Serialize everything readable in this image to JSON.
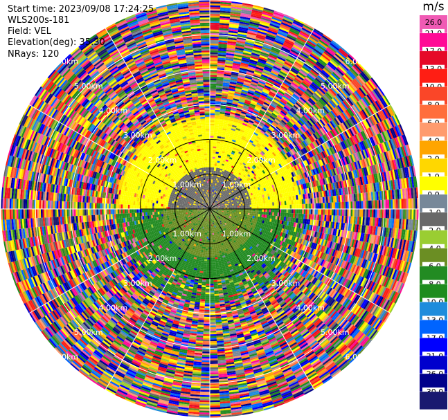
{
  "info": {
    "start_time": "Start time: 2023/09/08 17:24:25",
    "instrument": "WLS200s-181",
    "field": "Field: VEL",
    "elevation": "Elevation(deg): 35.30",
    "nrays": "NRays: 120"
  },
  "colorbar": {
    "unit": "m/s",
    "entries": [
      {
        "label": "26.0",
        "color": "#f05ab4"
      },
      {
        "label": "21.0",
        "color": "#ff0a96"
      },
      {
        "label": "17.0",
        "color": "#e60a28"
      },
      {
        "label": "13.0",
        "color": "#ff1e14"
      },
      {
        "label": "10.0",
        "color": "#fa4628"
      },
      {
        "label": "8.0",
        "color": "#ff6e3c"
      },
      {
        "label": "6.0",
        "color": "#ff9b6e"
      },
      {
        "label": "4.0",
        "color": "#ffa500"
      },
      {
        "label": "2.0",
        "color": "#ffd700"
      },
      {
        "label": "1.0",
        "color": "#ffff00"
      },
      {
        "label": "0.0",
        "color": "#778899"
      },
      {
        "label": "-1.0",
        "color": "#696969"
      },
      {
        "label": "-2.0",
        "color": "#9acd32"
      },
      {
        "label": "-4.0",
        "color": "#6b8e23"
      },
      {
        "label": "-6.0",
        "color": "#228b22"
      },
      {
        "label": "-8.0",
        "color": "#1e8c1e"
      },
      {
        "label": "-10.0",
        "color": "#1e8cdc"
      },
      {
        "label": "-13.0",
        "color": "#0064ff"
      },
      {
        "label": "-17.0",
        "color": "#0000ff"
      },
      {
        "label": "-21.0",
        "color": "#0000cd"
      },
      {
        "label": "-26.0",
        "color": "#00008b"
      },
      {
        "label": "-30.0",
        "color": "#191970"
      }
    ]
  },
  "chart_data": {
    "type": "heatmap",
    "projection": "polar PPI (range rings, azimuth spokes)",
    "field": "VEL",
    "units": "m/s",
    "nrays": 120,
    "elevation_deg": 35.3,
    "range_rings_km": [
      1.0,
      2.0,
      3.0,
      4.0,
      5.0,
      6.0
    ],
    "ring_labels": [
      "1.00km",
      "2.00km",
      "3.00km",
      "4.00km",
      "5.00km",
      "6.00km"
    ],
    "spoke_angles_deg": [
      0,
      30,
      60,
      90,
      120,
      150,
      180,
      210,
      240,
      270,
      300,
      330
    ],
    "max_range_km": 6.0,
    "inner_pattern": [
      {
        "range_km": [
          0.0,
          1.2
        ],
        "azimuth_deg": [
          270,
          90
        ],
        "value_mps": -0.5
      },
      {
        "range_km": [
          0.0,
          1.4
        ],
        "azimuth_deg": [
          90,
          270
        ],
        "value_mps": -2.5
      },
      {
        "range_km": [
          1.0,
          2.6
        ],
        "azimuth_deg": [
          270,
          90
        ],
        "value_mps": 1.5
      },
      {
        "range_km": [
          1.0,
          2.0
        ],
        "azimuth_deg": [
          100,
          260
        ],
        "value_mps": -4.5
      }
    ],
    "outer_region": "noise, mixed values from -30.0 to 26.0 beyond ~2.6 km"
  }
}
